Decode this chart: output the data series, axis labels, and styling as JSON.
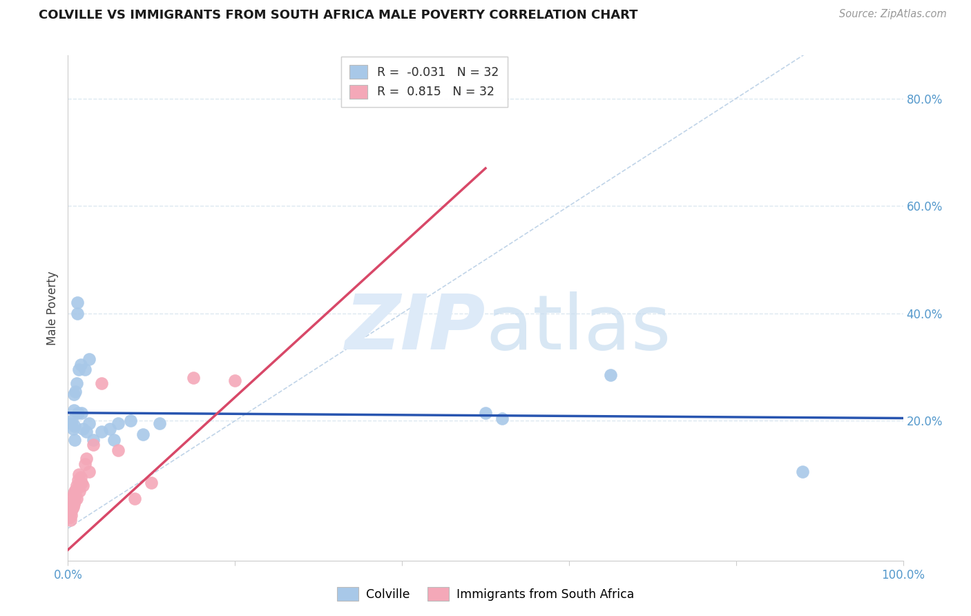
{
  "title": "COLVILLE VS IMMIGRANTS FROM SOUTH AFRICA MALE POVERTY CORRELATION CHART",
  "source": "Source: ZipAtlas.com",
  "ylabel": "Male Poverty",
  "ytick_labels": [
    "20.0%",
    "40.0%",
    "60.0%",
    "80.0%"
  ],
  "ytick_values": [
    0.2,
    0.4,
    0.6,
    0.8
  ],
  "xtick_labels": [
    "0.0%",
    "100.0%"
  ],
  "xtick_values": [
    0.0,
    1.0
  ],
  "xmin": 0.0,
  "xmax": 1.0,
  "ymin": -0.06,
  "ymax": 0.88,
  "colville_R": -0.031,
  "colville_N": 32,
  "immigrants_R": 0.815,
  "immigrants_N": 32,
  "colville_color": "#a8c8e8",
  "immigrants_color": "#f4a8b8",
  "colville_line_color": "#2855b0",
  "immigrants_line_color": "#d84868",
  "diagonal_color": "#c0d4e8",
  "background_color": "#ffffff",
  "grid_color": "#dce8f0",
  "watermark_color": "#ddeaf8",
  "colville_x": [
    0.004,
    0.005,
    0.006,
    0.007,
    0.007,
    0.008,
    0.008,
    0.009,
    0.01,
    0.011,
    0.011,
    0.012,
    0.013,
    0.015,
    0.016,
    0.018,
    0.02,
    0.022,
    0.025,
    0.025,
    0.03,
    0.04,
    0.05,
    0.055,
    0.06,
    0.075,
    0.09,
    0.11,
    0.5,
    0.52,
    0.65,
    0.88
  ],
  "colville_y": [
    0.195,
    0.2,
    0.185,
    0.25,
    0.22,
    0.19,
    0.165,
    0.255,
    0.27,
    0.42,
    0.4,
    0.215,
    0.295,
    0.305,
    0.215,
    0.185,
    0.295,
    0.18,
    0.315,
    0.195,
    0.165,
    0.18,
    0.185,
    0.165,
    0.195,
    0.2,
    0.175,
    0.195,
    0.215,
    0.205,
    0.285,
    0.105
  ],
  "immigrants_x": [
    0.002,
    0.003,
    0.003,
    0.004,
    0.005,
    0.005,
    0.006,
    0.006,
    0.007,
    0.007,
    0.008,
    0.008,
    0.009,
    0.01,
    0.01,
    0.011,
    0.012,
    0.013,
    0.014,
    0.015,
    0.016,
    0.018,
    0.02,
    0.022,
    0.025,
    0.03,
    0.04,
    0.06,
    0.08,
    0.1,
    0.15,
    0.2
  ],
  "immigrants_y": [
    0.02,
    0.015,
    0.03,
    0.025,
    0.035,
    0.05,
    0.04,
    0.06,
    0.045,
    0.065,
    0.05,
    0.07,
    0.06,
    0.08,
    0.055,
    0.075,
    0.09,
    0.1,
    0.07,
    0.095,
    0.085,
    0.08,
    0.12,
    0.13,
    0.105,
    0.155,
    0.27,
    0.145,
    0.055,
    0.085,
    0.28,
    0.275
  ],
  "colville_line_x": [
    0.0,
    1.0
  ],
  "colville_line_y": [
    0.215,
    0.205
  ],
  "immigrants_line_x": [
    0.0,
    0.5
  ],
  "immigrants_line_y": [
    -0.04,
    0.67
  ]
}
